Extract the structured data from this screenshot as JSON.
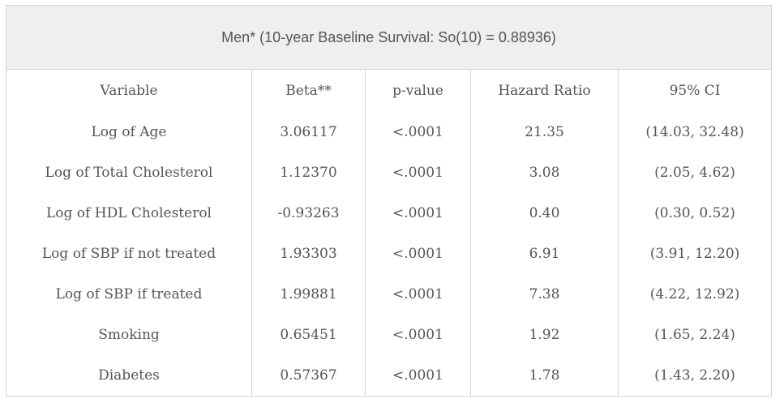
{
  "title": "Men* (10-year Baseline Survival: So(10) = 0.88936)",
  "columns": [
    "Variable",
    "Beta**",
    "p-value",
    "Hazard Ratio",
    "95% CI"
  ],
  "rows": [
    [
      "Log of Age",
      "3.06117",
      "<.0001",
      "21.35",
      "(14.03, 32.48)"
    ],
    [
      "Log of Total Cholesterol",
      "1.12370",
      "<.0001",
      "3.08",
      "(2.05, 4.62)"
    ],
    [
      "Log of HDL Cholesterol",
      "-0.93263",
      "<.0001",
      "0.40",
      "(0.30, 0.52)"
    ],
    [
      "Log of SBP if not treated",
      "1.93303",
      "<.0001",
      "6.91",
      "(3.91, 12.20)"
    ],
    [
      "Log of SBP if treated",
      "1.99881",
      "<.0001",
      "7.38",
      "(4.22, 12.92)"
    ],
    [
      "Smoking",
      "0.65451",
      "<.0001",
      "1.92",
      "(1.65, 2.24)"
    ],
    [
      "Diabetes",
      "0.57367",
      "<.0001",
      "1.78",
      "(1.43, 2.20)"
    ]
  ]
}
